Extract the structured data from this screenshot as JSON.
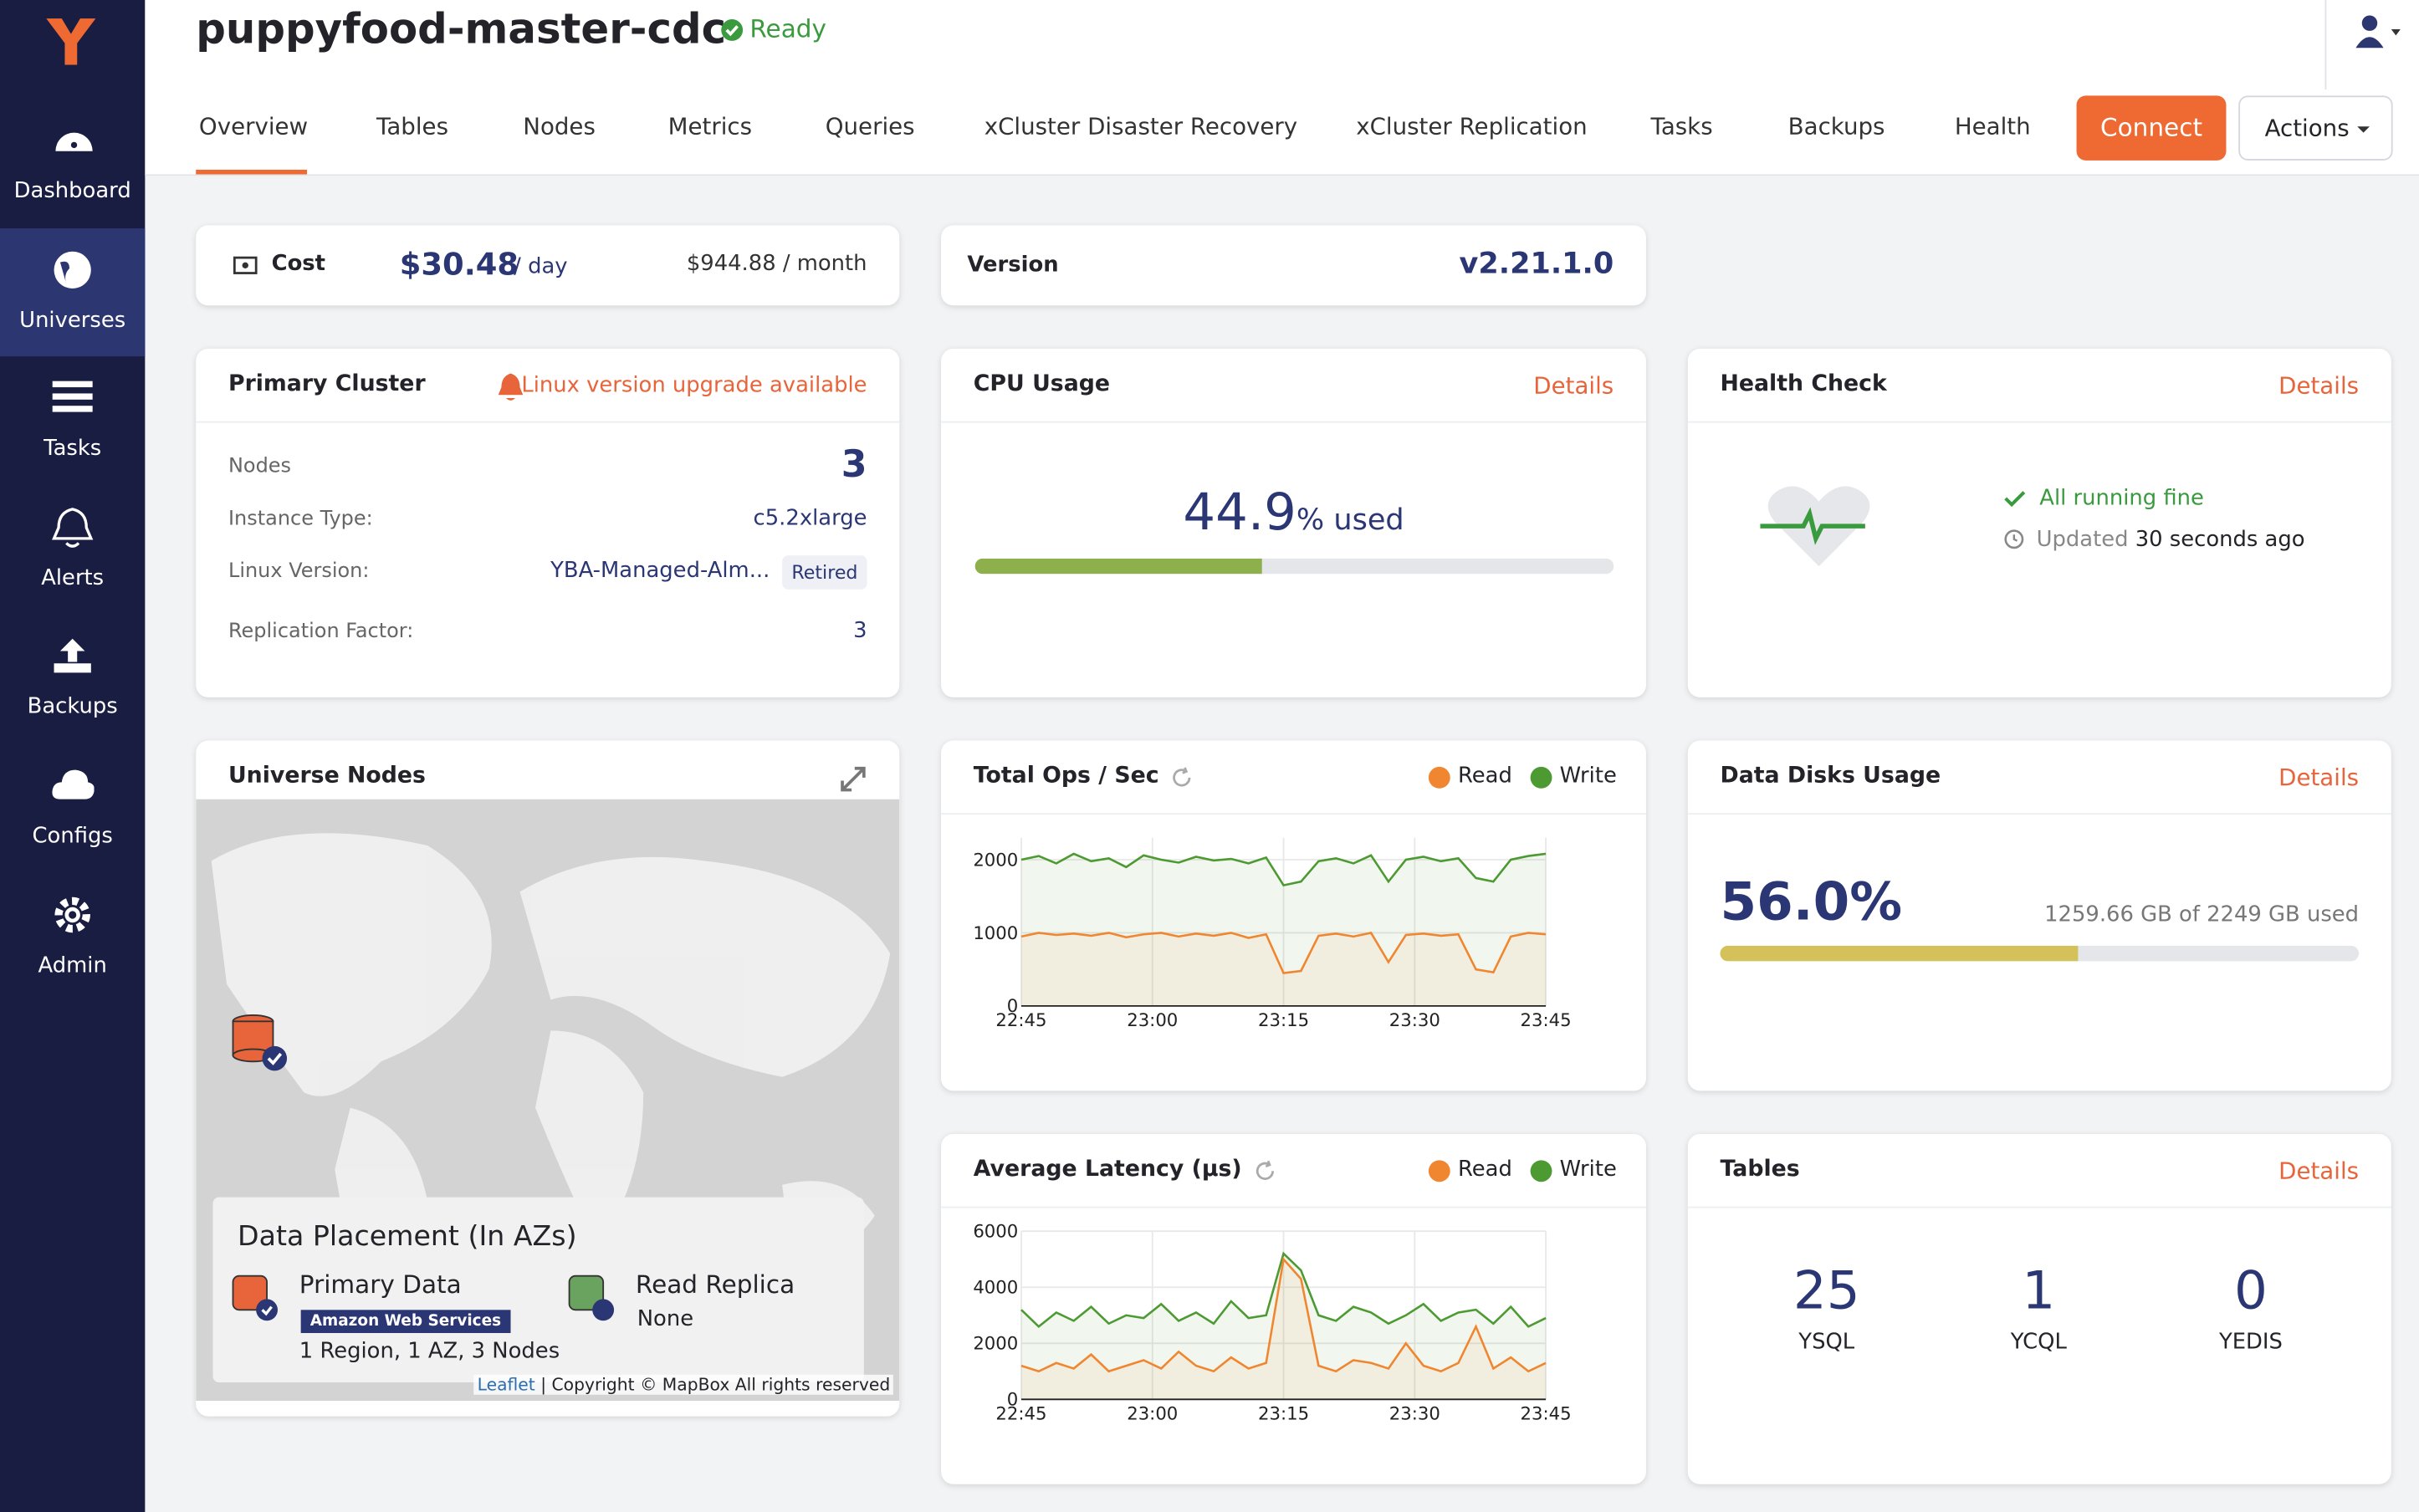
{
  "sidebar": {
    "items": [
      "Dashboard",
      "Universes",
      "Tasks",
      "Alerts",
      "Backups",
      "Configs",
      "Admin"
    ]
  },
  "header": {
    "title": "puppyfood-master-cdc",
    "status": "Ready"
  },
  "tabs": [
    "Overview",
    "Tables",
    "Nodes",
    "Metrics",
    "Queries",
    "xCluster Disaster Recovery",
    "xCluster Replication",
    "Tasks",
    "Backups",
    "Health"
  ],
  "buttons": {
    "connect": "Connect",
    "actions": "Actions"
  },
  "cost": {
    "label": "Cost",
    "daily": "$30.48",
    "daily_unit": "/ day",
    "monthly": "$944.88 / month"
  },
  "version": {
    "label": "Version",
    "value": "v2.21.1.0"
  },
  "primary_cluster": {
    "title": "Primary Cluster",
    "alert": "Linux version upgrade available",
    "rows": [
      [
        "Nodes",
        "3"
      ],
      [
        "Instance Type:",
        "c5.2xlarge"
      ],
      [
        "Linux Version:",
        "YBA-Managed-Alm..."
      ],
      [
        "Replication Factor:",
        "3"
      ]
    ],
    "badge": "Retired"
  },
  "cpu": {
    "title": "CPU Usage",
    "details": "Details",
    "value": 44.9,
    "unit": "% used"
  },
  "health": {
    "title": "Health Check",
    "details": "Details",
    "status": "All running fine",
    "updated_label": "Updated",
    "updated_value": "30 seconds ago"
  },
  "universe_nodes": {
    "title": "Universe Nodes",
    "placement_title": "Data Placement (In AZs)",
    "primary": "Primary Data",
    "provider": "Amazon Web Services",
    "primary_detail": "1 Region, 1 AZ, 3 Nodes",
    "replica": "Read Replica",
    "replica_detail": "None",
    "attribution_link": "Leaflet",
    "attribution": "| Copyright © MapBox All rights reserved"
  },
  "disk": {
    "title": "Data Disks Usage",
    "details": "Details",
    "percent": {
      "value": 56.0,
      "label": "56.0%"
    },
    "used": "1259.66 GB of 2249 GB used"
  },
  "tables": {
    "title": "Tables",
    "details": "Details",
    "counts": [
      {
        "label": "YSQL",
        "value": 25
      },
      {
        "label": "YCQL",
        "value": 1
      },
      {
        "label": "YEDIS",
        "value": 0
      }
    ]
  },
  "ops_chart": {
    "type": "line",
    "title": "Total Ops / Sec",
    "x": [
      "22:45",
      "22:47",
      "22:49",
      "22:51",
      "22:53",
      "22:55",
      "22:57",
      "22:59",
      "23:01",
      "23:03",
      "23:05",
      "23:07",
      "23:09",
      "23:11",
      "23:13",
      "23:15",
      "23:17",
      "23:19",
      "23:21",
      "23:23",
      "23:25",
      "23:27",
      "23:29",
      "23:31",
      "23:33",
      "23:35",
      "23:37",
      "23:39",
      "23:41",
      "23:43",
      "23:45"
    ],
    "xlim": [
      "22:45",
      "23:45"
    ],
    "xticks": [
      "22:45",
      "23:00",
      "23:15",
      "23:30",
      "23:45"
    ],
    "ylim": [
      0,
      2300
    ],
    "yticks": [
      0,
      1000,
      2000
    ],
    "series": [
      {
        "name": "Read",
        "color": "#f0862f",
        "values": [
          950,
          1000,
          970,
          990,
          960,
          1000,
          940,
          980,
          1000,
          950,
          990,
          960,
          1000,
          930,
          980,
          450,
          480,
          960,
          990,
          950,
          1000,
          600,
          970,
          990,
          960,
          980,
          500,
          460,
          950,
          1000,
          980
        ]
      },
      {
        "name": "Write",
        "color": "#4d9a32",
        "values": [
          2000,
          2050,
          1950,
          2080,
          1980,
          2020,
          1900,
          2060,
          2000,
          1960,
          2040,
          1990,
          2010,
          1950,
          2030,
          1650,
          1700,
          1980,
          2020,
          1950,
          2060,
          1700,
          2000,
          2040,
          1980,
          2020,
          1750,
          1700,
          2000,
          2050,
          2080
        ]
      }
    ]
  },
  "latency_chart": {
    "type": "line",
    "title": "Average Latency (µs)",
    "x": [
      "22:45",
      "22:47",
      "22:49",
      "22:51",
      "22:53",
      "22:55",
      "22:57",
      "22:59",
      "23:01",
      "23:03",
      "23:05",
      "23:07",
      "23:09",
      "23:11",
      "23:13",
      "23:15",
      "23:17",
      "23:19",
      "23:21",
      "23:23",
      "23:25",
      "23:27",
      "23:29",
      "23:31",
      "23:33",
      "23:35",
      "23:37",
      "23:39",
      "23:41",
      "23:43",
      "23:45"
    ],
    "xlim": [
      "22:45",
      "23:45"
    ],
    "xticks": [
      "22:45",
      "23:00",
      "23:15",
      "23:30",
      "23:45"
    ],
    "ylim": [
      0,
      6000
    ],
    "yticks": [
      0,
      2000,
      4000,
      6000
    ],
    "series": [
      {
        "name": "Read",
        "color": "#f0862f",
        "values": [
          1200,
          1000,
          1300,
          1100,
          1600,
          1000,
          1200,
          1400,
          1100,
          1700,
          1200,
          1000,
          1500,
          1100,
          1300,
          5000,
          4300,
          1200,
          1000,
          1400,
          1300,
          1100,
          2000,
          1200,
          1000,
          1300,
          2600,
          1100,
          1500,
          1000,
          1300
        ]
      },
      {
        "name": "Write",
        "color": "#4d9a32",
        "values": [
          3200,
          2600,
          3100,
          2800,
          3300,
          2700,
          3000,
          2900,
          3400,
          2800,
          3100,
          2700,
          3500,
          2900,
          3000,
          5200,
          4600,
          3000,
          2800,
          3300,
          3100,
          2700,
          3000,
          3400,
          2800,
          3100,
          3200,
          2700,
          3300,
          2600,
          2900
        ]
      }
    ]
  }
}
